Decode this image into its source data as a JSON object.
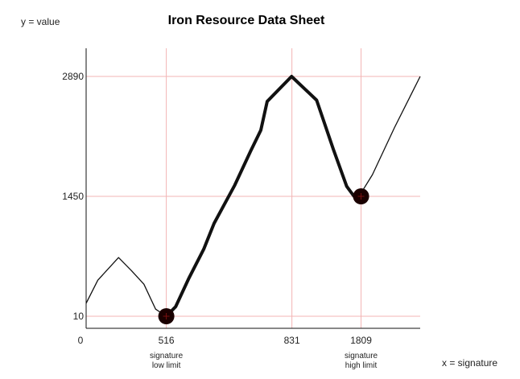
{
  "chart_data": {
    "type": "line",
    "title": "Iron Resource Data Sheet",
    "ylabel": "y = value",
    "xlabel": "x = signature",
    "x_origin_label": "0",
    "x_ticks": [
      "516",
      "831",
      "1809"
    ],
    "y_ticks": [
      10,
      1450,
      2890
    ],
    "ylim": [
      10,
      2890
    ],
    "annotations": [
      {
        "text_lines": [
          "signature",
          "low limit"
        ],
        "at": "516"
      },
      {
        "text_lines": [
          "signature",
          "high limit"
        ],
        "at": "1809"
      }
    ],
    "markers": [
      {
        "x_tick": "516",
        "y": 10
      },
      {
        "x_tick": "1809",
        "y": 1450
      }
    ],
    "series": [
      {
        "points": [
          [
            0.0,
            165
          ],
          [
            0.035,
            443
          ],
          [
            0.097,
            715
          ],
          [
            0.135,
            560
          ],
          [
            0.173,
            395
          ],
          [
            0.208,
            95
          ],
          [
            0.24,
            10
          ],
          [
            0.268,
            125
          ],
          [
            0.308,
            470
          ],
          [
            0.352,
            815
          ],
          [
            0.383,
            1125
          ],
          [
            0.445,
            1585
          ],
          [
            0.492,
            1990
          ],
          [
            0.523,
            2245
          ],
          [
            0.542,
            2590
          ],
          [
            0.615,
            2890
          ],
          [
            0.69,
            2605
          ],
          [
            0.74,
            2015
          ],
          [
            0.78,
            1570
          ],
          [
            0.802,
            1450
          ],
          [
            0.82,
            1470
          ],
          [
            0.857,
            1710
          ],
          [
            0.923,
            2275
          ],
          [
            1.0,
            2890
          ]
        ],
        "emphasis_range": [
          0.24,
          0.802
        ]
      }
    ],
    "grid": true
  }
}
